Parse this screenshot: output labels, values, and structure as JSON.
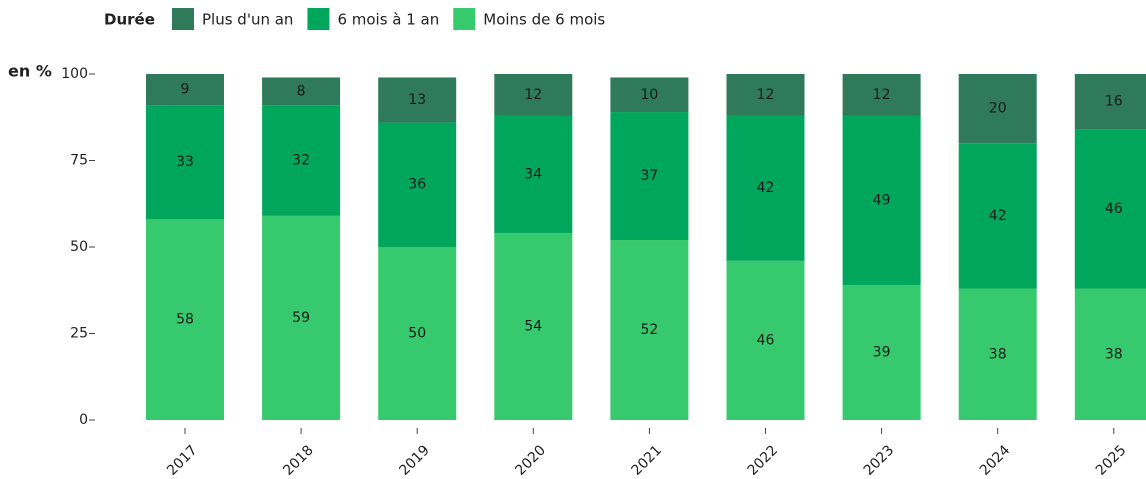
{
  "chart_data": {
    "type": "bar",
    "stacked": true,
    "legend_title": "Durée",
    "ylabel": "en %",
    "categories": [
      "2017",
      "2018",
      "2019",
      "2020",
      "2021",
      "2022",
      "2023",
      "2024",
      "2025"
    ],
    "series": [
      {
        "name": "Moins de 6 mois",
        "color": "#37c96d",
        "values": [
          58,
          59,
          50,
          54,
          52,
          46,
          39,
          38,
          38
        ]
      },
      {
        "name": "6 mois à 1 an",
        "color": "#00a65c",
        "values": [
          33,
          32,
          36,
          34,
          37,
          42,
          49,
          42,
          46
        ]
      },
      {
        "name": "Plus d'un an",
        "color": "#2e7a5a",
        "values": [
          9,
          8,
          13,
          12,
          10,
          12,
          12,
          20,
          16
        ]
      }
    ],
    "legend_order": [
      "Plus d'un an",
      "6 mois à 1 an",
      "Moins de 6 mois"
    ],
    "ylim": [
      0,
      100
    ],
    "yticks": [
      0,
      25,
      50,
      75,
      100
    ],
    "grid": false
  }
}
